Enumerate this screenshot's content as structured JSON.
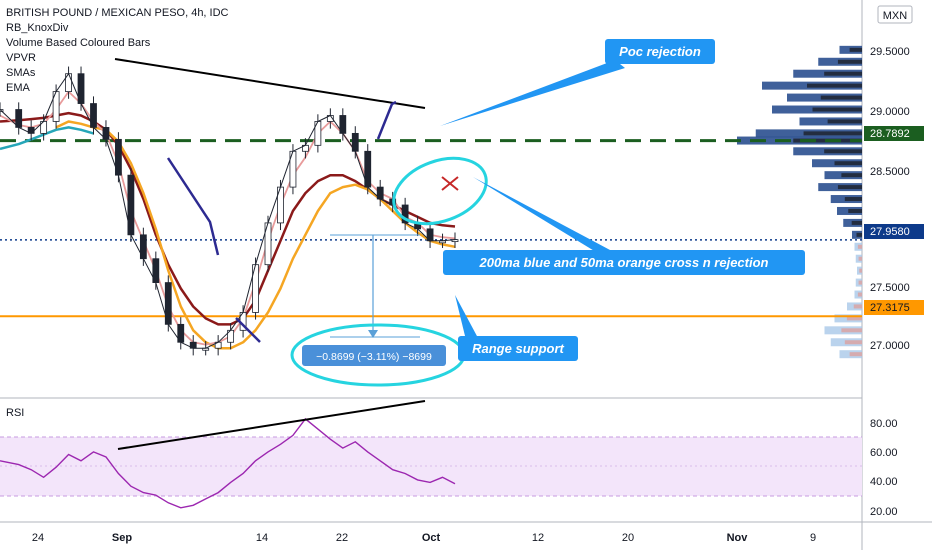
{
  "header": {
    "symbol_title": "BRITISH POUND / MEXICAN PESO, 4h, IDC",
    "indicators": [
      "RB_KnoxDiv",
      "Volume Based Coloured Bars",
      "VPVR",
      "SMAs",
      "EMA"
    ],
    "currency": "MXN"
  },
  "rsi": {
    "label": "RSI",
    "ticks": [
      "80.00",
      "60.00",
      "40.00",
      "20.00"
    ]
  },
  "price_axis": {
    "ticks": [
      "29.5000",
      "29.0000",
      "28.5000",
      "27.5000",
      "27.0000"
    ],
    "tags": [
      {
        "text": "28.7892",
        "bg": "#1b5e20",
        "fg": "#ffffff"
      },
      {
        "text": "27.9580",
        "bg": "#0d3a8a",
        "fg": "#ffffff"
      },
      {
        "text": "27.3175",
        "bg": "#ff9800",
        "fg": "#131722"
      }
    ]
  },
  "time_axis": {
    "ticks": [
      "24",
      "Sep",
      "14",
      "22",
      "Oct",
      "12",
      "20",
      "Nov",
      "9"
    ]
  },
  "annotations": {
    "poc": "Poc rejection",
    "cross": "200ma blue and 50ma orange cross n rejection",
    "range": "Range support",
    "measure": "−0.8699 (−3.11%) −8699"
  },
  "chart_data": {
    "type": "line",
    "title": "BRITISH POUND / MEXICAN PESO, 4h, IDC",
    "ylim": [
      26.7,
      29.8
    ],
    "price_x": [
      0,
      3,
      5,
      7,
      9,
      11,
      13,
      15,
      17,
      19,
      21,
      23,
      25,
      27,
      29,
      31,
      33,
      35,
      37,
      39,
      41,
      43,
      45,
      47,
      49,
      51,
      53,
      55,
      57,
      59,
      61,
      63,
      65,
      67,
      69,
      71,
      73
    ],
    "price": [
      29.05,
      28.9,
      28.85,
      28.95,
      29.2,
      29.35,
      29.1,
      28.9,
      28.8,
      28.5,
      28.0,
      27.8,
      27.6,
      27.25,
      27.1,
      27.05,
      27.05,
      27.1,
      27.2,
      27.35,
      27.75,
      28.1,
      28.4,
      28.7,
      28.75,
      28.95,
      29.0,
      28.85,
      28.7,
      28.4,
      28.3,
      28.25,
      28.1,
      28.05,
      27.95,
      27.95,
      27.96
    ],
    "ema": [
      29.0,
      28.92,
      28.9,
      28.93,
      29.05,
      29.2,
      29.1,
      28.95,
      28.85,
      28.6,
      28.2,
      27.95,
      27.7,
      27.4,
      27.2,
      27.1,
      27.08,
      27.1,
      27.15,
      27.3,
      27.6,
      27.95,
      28.25,
      28.5,
      28.65,
      28.85,
      28.95,
      28.85,
      28.7,
      28.45,
      28.35,
      28.3,
      28.15,
      28.1,
      28.0,
      27.98,
      27.97
    ],
    "sma_red": [
      28.95,
      28.96,
      28.97,
      28.98,
      29.0,
      29.02,
      29.0,
      28.95,
      28.88,
      28.75,
      28.55,
      28.3,
      28.0,
      27.75,
      27.55,
      27.4,
      27.3,
      27.25,
      27.25,
      27.3,
      27.45,
      27.7,
      27.95,
      28.2,
      28.35,
      28.45,
      28.5,
      28.5,
      28.45,
      28.38,
      28.3,
      28.25,
      28.2,
      28.15,
      28.1,
      28.08,
      28.07
    ],
    "ma_orange": [
      null,
      null,
      null,
      null,
      28.9,
      28.95,
      28.93,
      28.9,
      28.88,
      28.78,
      28.6,
      28.35,
      28.05,
      27.7,
      27.4,
      27.2,
      27.1,
      27.05,
      27.05,
      27.1,
      27.2,
      27.35,
      27.55,
      27.8,
      28.0,
      28.2,
      28.35,
      28.4,
      28.42,
      28.38,
      28.3,
      28.2,
      28.1,
      28.02,
      27.95,
      27.92,
      27.9
    ],
    "ma_teal": [
      28.72,
      28.76,
      28.8,
      28.84,
      28.88,
      28.9,
      28.88,
      28.85,
      null,
      null,
      null,
      null,
      null,
      null,
      null,
      null,
      null,
      null,
      null,
      null,
      null,
      null,
      null,
      null,
      null,
      null,
      null,
      null,
      null,
      null,
      null,
      null,
      null,
      null,
      null,
      null,
      null
    ],
    "levels": [
      {
        "name": "POC",
        "value": 28.7892
      },
      {
        "name": "Last price",
        "value": 27.958
      },
      {
        "name": "Range support",
        "value": 27.3175
      }
    ],
    "rsi_ylim": [
      10,
      95
    ],
    "rsi": [
      55,
      52,
      48,
      42,
      50,
      60,
      55,
      62,
      58,
      45,
      35,
      30,
      28,
      22,
      18,
      20,
      25,
      30,
      38,
      45,
      55,
      62,
      68,
      75,
      88,
      80,
      72,
      65,
      70,
      62,
      55,
      48,
      45,
      40,
      38,
      42,
      37
    ],
    "volume_profile": [
      {
        "price": 29.55,
        "vol": 0.18
      },
      {
        "price": 29.45,
        "vol": 0.35
      },
      {
        "price": 29.35,
        "vol": 0.55
      },
      {
        "price": 29.25,
        "vol": 0.8
      },
      {
        "price": 29.15,
        "vol": 0.6
      },
      {
        "price": 29.05,
        "vol": 0.72
      },
      {
        "price": 28.95,
        "vol": 0.5
      },
      {
        "price": 28.85,
        "vol": 0.85
      },
      {
        "price": 28.79,
        "vol": 1.0
      },
      {
        "price": 28.7,
        "vol": 0.55
      },
      {
        "price": 28.6,
        "vol": 0.4
      },
      {
        "price": 28.5,
        "vol": 0.3
      },
      {
        "price": 28.4,
        "vol": 0.35
      },
      {
        "price": 28.3,
        "vol": 0.25
      },
      {
        "price": 28.2,
        "vol": 0.2
      },
      {
        "price": 28.1,
        "vol": 0.15
      },
      {
        "price": 28.0,
        "vol": 0.08
      },
      {
        "price": 27.9,
        "vol": 0.06
      },
      {
        "price": 27.8,
        "vol": 0.05
      },
      {
        "price": 27.7,
        "vol": 0.04
      },
      {
        "price": 27.6,
        "vol": 0.05
      },
      {
        "price": 27.5,
        "vol": 0.06
      },
      {
        "price": 27.4,
        "vol": 0.12
      },
      {
        "price": 27.3,
        "vol": 0.22
      },
      {
        "price": 27.2,
        "vol": 0.3
      },
      {
        "price": 27.1,
        "vol": 0.25
      },
      {
        "price": 27.0,
        "vol": 0.18
      }
    ]
  }
}
